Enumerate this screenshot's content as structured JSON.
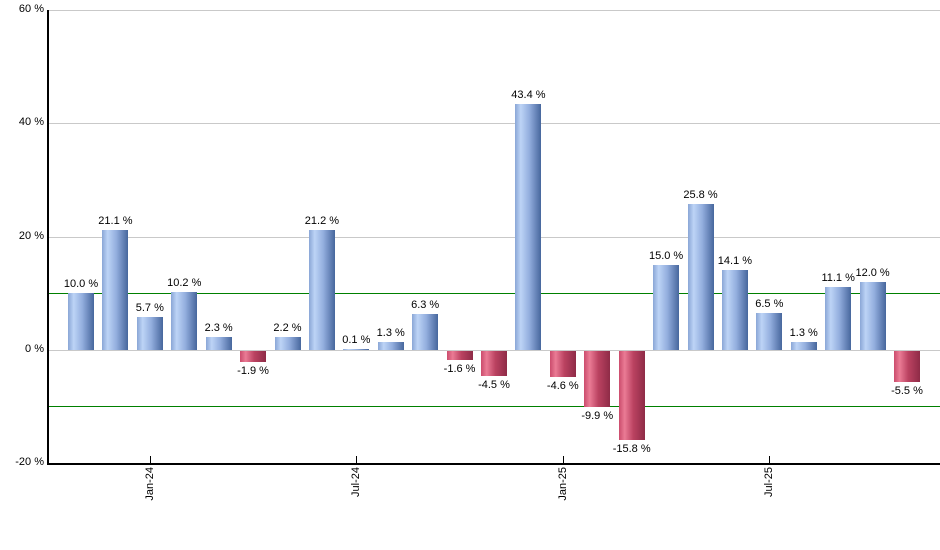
{
  "chart_data": {
    "type": "bar",
    "title": "",
    "xlabel": "",
    "ylabel": "",
    "ylim": [
      -20,
      60
    ],
    "grid": true,
    "legend": "none",
    "value_label_format": "percent with space, one decimal",
    "bars": [
      {
        "value": 10.0,
        "label": "10.0 %"
      },
      {
        "value": 21.1,
        "label": "21.1 %"
      },
      {
        "value": 5.7,
        "label": "5.7 %"
      },
      {
        "value": 10.2,
        "label": "10.2 %"
      },
      {
        "value": 2.3,
        "label": "2.3 %"
      },
      {
        "value": -1.9,
        "label": "-1.9 %"
      },
      {
        "value": 2.2,
        "label": "2.2 %"
      },
      {
        "value": 21.2,
        "label": "21.2 %"
      },
      {
        "value": 0.1,
        "label": "0.1 %"
      },
      {
        "value": 1.3,
        "label": "1.3 %"
      },
      {
        "value": 6.3,
        "label": "6.3 %"
      },
      {
        "value": -1.6,
        "label": "-1.6 %"
      },
      {
        "value": -4.5,
        "label": "-4.5 %"
      },
      {
        "value": 43.4,
        "label": "43.4 %"
      },
      {
        "value": -4.6,
        "label": "-4.6 %"
      },
      {
        "value": -9.9,
        "label": "-9.9 %"
      },
      {
        "value": -15.8,
        "label": "-15.8 %"
      },
      {
        "value": 15.0,
        "label": "15.0 %"
      },
      {
        "value": 25.8,
        "label": "25.8 %"
      },
      {
        "value": 14.1,
        "label": "14.1 %"
      },
      {
        "value": 6.5,
        "label": "6.5 %"
      },
      {
        "value": 1.3,
        "label": "1.3 %"
      },
      {
        "value": 11.1,
        "label": "11.1 %"
      },
      {
        "value": 12.0,
        "label": "12.0 %"
      },
      {
        "value": -5.5,
        "label": "-5.5 %"
      }
    ],
    "y_ticks": [
      {
        "value": 60,
        "label": "60 %"
      },
      {
        "value": 40,
        "label": "40 %"
      },
      {
        "value": 20,
        "label": "20 %"
      },
      {
        "value": 0,
        "label": "0 %"
      },
      {
        "value": -20,
        "label": "-20 %"
      }
    ],
    "x_ticks": [
      {
        "bar_index": 2,
        "label": "Jan-24"
      },
      {
        "bar_index": 8,
        "label": "Jul-24"
      },
      {
        "bar_index": 14,
        "label": "Jan-25"
      },
      {
        "bar_index": 20,
        "label": "Jul-25"
      }
    ],
    "reference_lines": [
      {
        "value": 10,
        "color": "#008000"
      },
      {
        "value": -10,
        "color": "#008000"
      }
    ],
    "colors": {
      "background": "#ffffff",
      "grid": "#c9c9c9",
      "axis": "#000000",
      "label_text": "#000000",
      "positive_gradient": [
        "#8aa6d6",
        "#bdd4f6",
        "#93aede",
        "#47679d"
      ],
      "negative_gradient": [
        "#cb4c6c",
        "#ea7b95",
        "#bb4261",
        "#8e2b47"
      ]
    }
  }
}
